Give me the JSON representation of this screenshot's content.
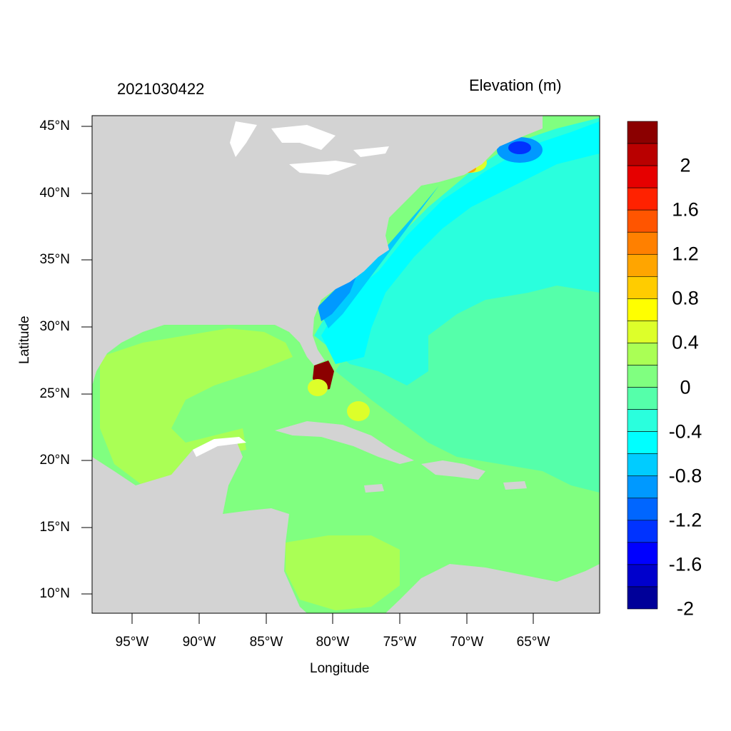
{
  "title_left": "2021030422",
  "title_right": "Elevation (m)",
  "x_axis_label": "Longitude",
  "y_axis_label": "Latitude",
  "lat_ticks": [
    "45°N",
    "40°N",
    "35°N",
    "30°N",
    "25°N",
    "20°N",
    "15°N",
    "10°N"
  ],
  "lon_ticks": [
    "95°W",
    "90°W",
    "85°W",
    "80°W",
    "75°W",
    "70°W",
    "65°W"
  ],
  "colorbar": {
    "labels": [
      "2",
      "1.6",
      "1.2",
      "0.8",
      "0.4",
      "0",
      "-0.4",
      "-0.8",
      "-1.2",
      "-1.6",
      "-2"
    ],
    "colors": [
      "#8b0000",
      "#b90000",
      "#e60000",
      "#ff2200",
      "#ff5500",
      "#ff8000",
      "#ffa500",
      "#ffcc00",
      "#ffff00",
      "#ddff2a",
      "#aaff55",
      "#80ff80",
      "#55ffaa",
      "#2affdd",
      "#00ffff",
      "#00ccff",
      "#0099ff",
      "#0066ff",
      "#0033ff",
      "#0000ff",
      "#0000cc",
      "#000099"
    ]
  },
  "colors": {
    "land": "#d3d3d3",
    "ocean_main": "#80ff80",
    "atlantic": "#55ffaa",
    "shelf": "#00ffff"
  }
}
